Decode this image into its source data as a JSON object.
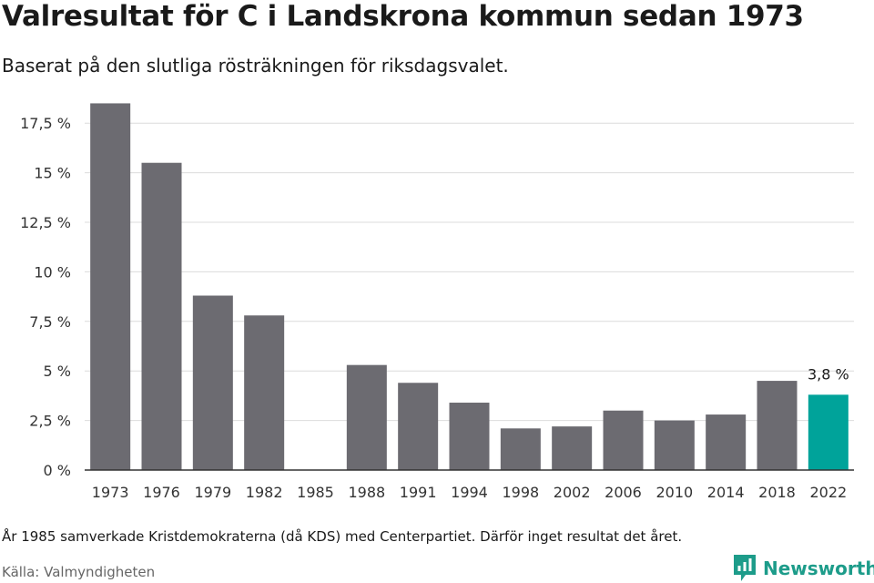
{
  "header": {
    "title": "Valresultat för C i Landskrona kommun sedan 1973",
    "subtitle": "Baserat på den slutliga rösträkningen för riksdagsvalet."
  },
  "footer": {
    "note": "År 1985 samverkade Kristdemokraterna (då KDS) med Centerpartiet. Därför inget resultat det året.",
    "source": "Källa: Valmyndigheten",
    "brand": "Newsworthy",
    "brand_icon": "newsworthy-logo-icon"
  },
  "colors": {
    "bar": "#6c6b71",
    "highlight": "#00a39a",
    "grid": "#dcdcdc",
    "axis": "#333333",
    "brand": "#1d9c8a"
  },
  "chart_data": {
    "type": "bar",
    "title": "Valresultat för C i Landskrona kommun sedan 1973",
    "subtitle": "Baserat på den slutliga rösträkningen för riksdagsvalet.",
    "categories": [
      "1973",
      "1976",
      "1979",
      "1982",
      "1985",
      "1988",
      "1991",
      "1994",
      "1998",
      "2002",
      "2006",
      "2010",
      "2014",
      "2018",
      "2022"
    ],
    "values": [
      18.5,
      15.5,
      8.8,
      7.8,
      null,
      5.3,
      4.4,
      3.4,
      2.1,
      2.2,
      3.0,
      2.5,
      2.8,
      4.5,
      3.8
    ],
    "ylim": [
      0,
      18.75
    ],
    "yticks": [
      0,
      2.5,
      5,
      7.5,
      10,
      12.5,
      15,
      17.5
    ],
    "ytick_labels": [
      "0 %",
      "2,5 %",
      "5 %",
      "7,5 %",
      "10 %",
      "12,5 %",
      "15 %",
      "17,5 %"
    ],
    "highlight_index": 14,
    "annotations": [
      {
        "category": "2022",
        "label": "3,8 %"
      }
    ],
    "grid": true,
    "legend": "none"
  }
}
